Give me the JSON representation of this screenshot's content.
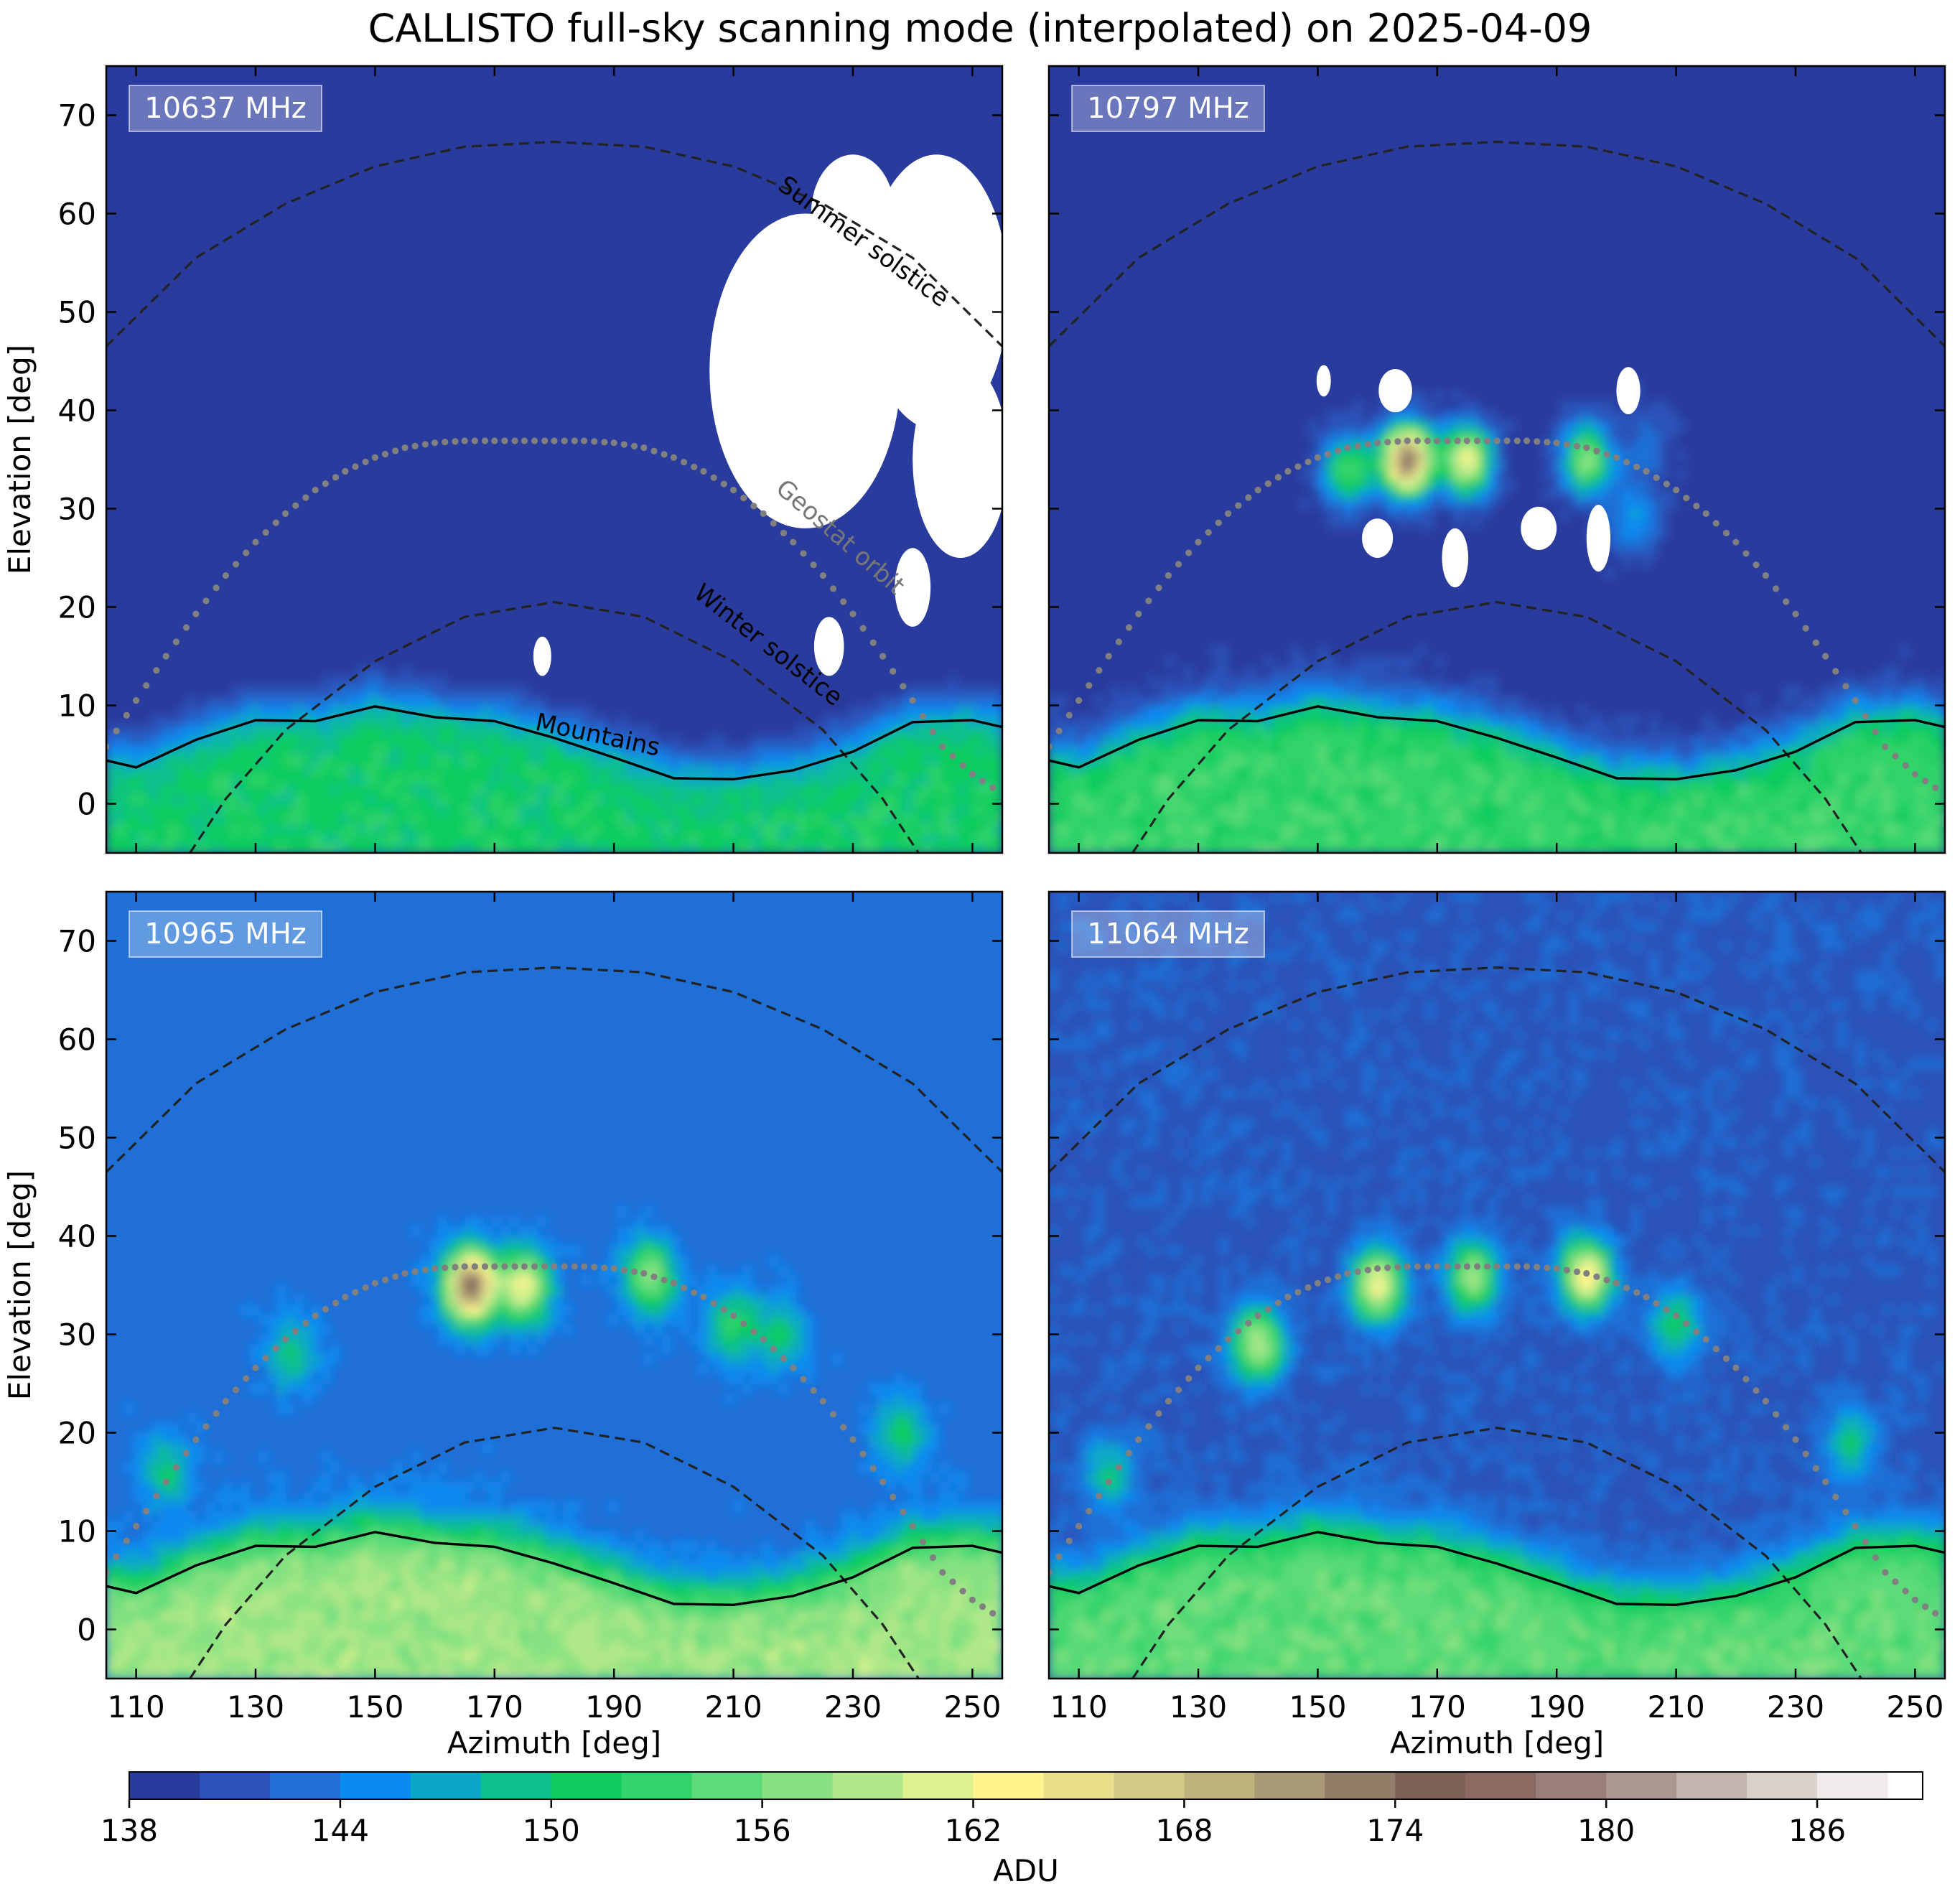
{
  "title": "CALLISTO full-sky scanning mode (interpolated) on 2025-04-09",
  "chart_data": {
    "type": "heatmap",
    "title": "CALLISTO full-sky scanning mode (interpolated) on 2025-04-09",
    "xlabel": "Azimuth [deg]",
    "ylabel": "Elevation [deg]",
    "xlim": [
      105,
      255
    ],
    "ylim": [
      -5,
      75
    ],
    "xticks": [
      110,
      130,
      150,
      170,
      190,
      210,
      230,
      250
    ],
    "yticks": [
      0,
      10,
      20,
      30,
      40,
      50,
      60,
      70
    ],
    "colorbar": {
      "label": "ADU",
      "min": 138,
      "max": 189,
      "step": 2,
      "ticks": [
        138,
        144,
        150,
        156,
        162,
        168,
        174,
        180,
        186
      ],
      "colors": [
        "#2a3b9e",
        "#2b52b8",
        "#1f6fd6",
        "#0b8af0",
        "#0aa7c7",
        "#0bbf8f",
        "#10cc5e",
        "#33d46a",
        "#5bdb79",
        "#88e281",
        "#b2e88a",
        "#dbf28e",
        "#fff48c",
        "#e9df8a",
        "#d4c985",
        "#bfb27d",
        "#a99874",
        "#927d68",
        "#7f6157",
        "#8a6a62",
        "#9a7f78",
        "#ad9791",
        "#c2b4ae",
        "#dad0cc",
        "#efebea",
        "#ffffff"
      ]
    },
    "lines": {
      "summer_solstice": {
        "label": "Summer solstice",
        "style": "dashed",
        "x": [
          105,
          120,
          135,
          150,
          165,
          180,
          195,
          210,
          225,
          240,
          255
        ],
        "y": [
          46.5,
          55.5,
          61.0,
          64.8,
          66.8,
          67.3,
          66.8,
          64.8,
          61.0,
          55.5,
          46.5
        ]
      },
      "winter_solstice": {
        "label": "Winter solstice",
        "style": "dashed",
        "x": [
          119,
          125,
          135,
          150,
          165,
          180,
          195,
          210,
          225,
          235,
          241
        ],
        "y": [
          -5,
          0.5,
          7.5,
          14.5,
          19.0,
          20.5,
          19.0,
          14.5,
          7.5,
          0.5,
          -5
        ]
      },
      "geostationary_orbit": {
        "label": "Geostat orbit",
        "style": "dotted",
        "x": [
          105,
          110,
          115,
          120,
          125,
          130,
          135,
          140,
          145,
          150,
          155,
          160,
          165,
          170,
          175,
          180,
          185,
          190,
          195,
          200,
          205,
          210,
          215,
          220,
          225,
          230,
          235,
          240,
          245,
          250,
          255
        ],
        "y": [
          5.8,
          10.5,
          15.0,
          19.3,
          23.2,
          26.6,
          29.5,
          31.9,
          33.8,
          35.2,
          36.2,
          36.7,
          36.9,
          36.9,
          36.9,
          36.9,
          36.9,
          36.7,
          36.2,
          35.2,
          33.8,
          31.9,
          29.5,
          26.6,
          23.2,
          19.3,
          15.0,
          10.5,
          5.8,
          3.0,
          1.0
        ]
      },
      "mountains": {
        "label": "Mountains",
        "style": "solid",
        "x": [
          105,
          110,
          120,
          130,
          140,
          150,
          160,
          170,
          180,
          190,
          200,
          210,
          220,
          230,
          240,
          250,
          255
        ],
        "y": [
          4.4,
          3.7,
          6.5,
          8.5,
          8.4,
          9.9,
          8.8,
          8.4,
          6.7,
          4.7,
          2.6,
          2.5,
          3.4,
          5.3,
          8.3,
          8.5,
          7.8
        ]
      }
    },
    "panels": [
      {
        "label": "10637 MHz",
        "base_level": 138,
        "sources": [],
        "saturated_regions": [
          {
            "center": [
              222,
              44
            ],
            "radius": [
              16,
              16
            ]
          },
          {
            "center": [
              244,
              52
            ],
            "radius": [
              12,
              14
            ]
          },
          {
            "center": [
              248,
              35
            ],
            "radius": [
              8,
              10
            ]
          },
          {
            "center": [
              240,
              22
            ],
            "radius": [
              3,
              4
            ]
          },
          {
            "center": [
              226,
              16
            ],
            "radius": [
              2.5,
              3
            ]
          },
          {
            "center": [
              178,
              15
            ],
            "radius": [
              1.5,
              2
            ]
          },
          {
            "center": [
              219,
              40
            ],
            "radius": [
              6,
              10
            ]
          },
          {
            "center": [
              230,
              60
            ],
            "radius": [
              7,
              6
            ]
          }
        ]
      },
      {
        "label": "10797 MHz",
        "base_level": 138.8,
        "sources": [
          {
            "az": 165,
            "el": 35,
            "peak": 174
          },
          {
            "az": 175,
            "el": 35,
            "peak": 162
          },
          {
            "az": 155,
            "el": 34,
            "peak": 154
          },
          {
            "az": 195,
            "el": 35,
            "peak": 157
          },
          {
            "az": 203,
            "el": 29,
            "peak": 146
          },
          {
            "az": 205,
            "el": 37,
            "peak": 143
          }
        ],
        "saturated_regions": [
          {
            "center": [
              151,
              43
            ],
            "radius": [
              1.2,
              1.6
            ]
          },
          {
            "center": [
              163,
              42
            ],
            "radius": [
              2.8,
              2.2
            ]
          },
          {
            "center": [
              202,
              42
            ],
            "radius": [
              2,
              2.4
            ]
          },
          {
            "center": [
              160,
              27
            ],
            "radius": [
              2.6,
              2
            ]
          },
          {
            "center": [
              173,
              25
            ],
            "radius": [
              2.2,
              3
            ]
          },
          {
            "center": [
              187,
              28
            ],
            "radius": [
              3,
              2.2
            ]
          },
          {
            "center": [
              197,
              27
            ],
            "radius": [
              2,
              3.4
            ]
          }
        ]
      },
      {
        "label": "10965 MHz",
        "base_level": 143,
        "sources": [
          {
            "az": 166,
            "el": 35,
            "peak": 175
          },
          {
            "az": 175,
            "el": 35,
            "peak": 162
          },
          {
            "az": 196,
            "el": 36,
            "peak": 157
          },
          {
            "az": 210,
            "el": 31,
            "peak": 152
          },
          {
            "az": 136,
            "el": 28,
            "peak": 150
          },
          {
            "az": 115,
            "el": 16,
            "peak": 150
          },
          {
            "az": 238,
            "el": 20,
            "peak": 151
          },
          {
            "az": 218,
            "el": 30,
            "peak": 150
          }
        ],
        "saturated_regions": []
      },
      {
        "label": "11064 MHz",
        "base_level": 141.5,
        "sources": [
          {
            "az": 160,
            "el": 35,
            "peak": 163
          },
          {
            "az": 176,
            "el": 36,
            "peak": 158
          },
          {
            "az": 195,
            "el": 36,
            "peak": 164
          },
          {
            "az": 140,
            "el": 29,
            "peak": 160
          },
          {
            "az": 210,
            "el": 31,
            "peak": 151
          },
          {
            "az": 115,
            "el": 16,
            "peak": 150
          },
          {
            "az": 239,
            "el": 19,
            "peak": 150
          }
        ],
        "saturated_regions": []
      }
    ]
  }
}
